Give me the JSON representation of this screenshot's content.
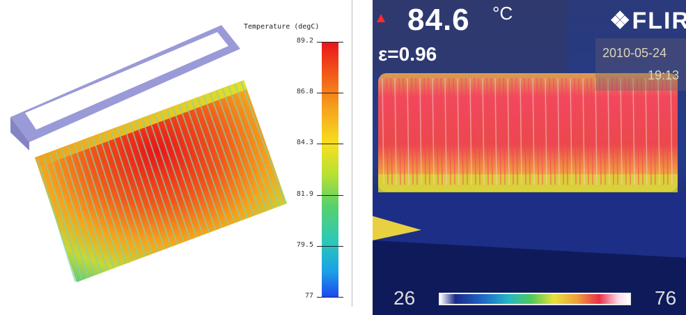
{
  "simulation": {
    "legend_title": "Temperature (degC)",
    "legend_ticks": [
      "89.2",
      "86.8",
      "84.3",
      "81.9",
      "79.5",
      "77"
    ],
    "colors": {
      "hot": "#e8141b",
      "mid": "#f7e01f",
      "cool": "#59d16a",
      "cold": "#1f47ee",
      "frame": "#9a9ad8"
    }
  },
  "thermal_camera": {
    "temperature_value": "84.6",
    "temperature_unit": "°C",
    "emissivity": "ε=0.96",
    "brand": "FLIR",
    "date": "2010-05-24",
    "time": "19:13",
    "scale_min": "26",
    "scale_max": "76",
    "icons": [
      "hotspot-marker-icon",
      "flir-logo-icon"
    ]
  }
}
